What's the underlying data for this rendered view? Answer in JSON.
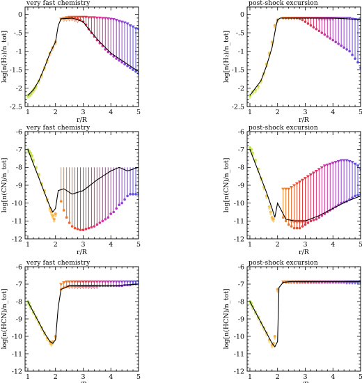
{
  "figure": {
    "background": "#ffffff",
    "model_color": "#000000",
    "gradient_colors": [
      "#b6e33a",
      "#f2c83a",
      "#f07a24",
      "#e0343e",
      "#d6329a",
      "#9c3ad8",
      "#4a55e0"
    ],
    "marker_lower": "down-triangle",
    "marker_upper": "up-triangle"
  },
  "chart_data": [
    {
      "type": "line",
      "title": "very fast chemistry",
      "xlabel": "r/R",
      "ylabel": "log[n(H₂)/n_tot]",
      "xlim": [
        0.9,
        5
      ],
      "ylim": [
        -2.5,
        0.2
      ],
      "xticks": [
        1,
        2,
        3,
        4,
        5
      ],
      "yticks": [
        -2.5,
        -2,
        -1.5,
        -1,
        -0.5,
        0
      ],
      "ytick_labels": [
        "-2.5",
        "-2",
        "-1.5",
        "-1",
        "-.5",
        "0"
      ],
      "model_curve": {
        "x": [
          1.0,
          1.2,
          1.4,
          1.6,
          1.8,
          2.0,
          2.1,
          2.2,
          2.6,
          3.0,
          3.2,
          3.6,
          4.0,
          4.4,
          4.8,
          5.0
        ],
        "y": [
          -2.2,
          -2.05,
          -1.8,
          -1.45,
          -1.05,
          -0.75,
          -0.3,
          -0.12,
          -0.1,
          -0.2,
          -0.4,
          -0.75,
          -1.05,
          -1.25,
          -1.45,
          -1.55
        ]
      },
      "bars": {
        "x": [
          2.2,
          2.3,
          2.4,
          2.5,
          2.6,
          2.7,
          2.8,
          2.9,
          3.0,
          3.1,
          3.2,
          3.3,
          3.4,
          3.5,
          3.6,
          3.7,
          3.8,
          3.9,
          4.0,
          4.1,
          4.2,
          4.3,
          4.4,
          4.5,
          4.6,
          4.7,
          4.8,
          4.9,
          5.0
        ],
        "low": [
          -0.12,
          -0.11,
          -0.1,
          -0.1,
          -0.1,
          -0.1,
          -0.12,
          -0.15,
          -0.2,
          -0.28,
          -0.4,
          -0.5,
          -0.6,
          -0.7,
          -0.78,
          -0.86,
          -0.95,
          -1.02,
          -1.08,
          -1.14,
          -1.2,
          -1.25,
          -1.3,
          -1.35,
          -1.4,
          -1.45,
          -1.5,
          -1.55,
          -1.6
        ],
        "high": [
          -0.12,
          -0.1,
          -0.08,
          -0.07,
          -0.07,
          -0.07,
          -0.07,
          -0.07,
          -0.07,
          -0.07,
          -0.08,
          -0.08,
          -0.08,
          -0.09,
          -0.09,
          -0.1,
          -0.1,
          -0.11,
          -0.12,
          -0.13,
          -0.15,
          -0.18,
          -0.2,
          -0.22,
          -0.25,
          -0.3,
          -0.33,
          -0.38,
          -0.4
        ]
      },
      "points": {
        "x": [
          1.0,
          1.05,
          1.1,
          1.15,
          1.2,
          1.25,
          1.3,
          1.4,
          1.5,
          1.6,
          1.7,
          1.8,
          1.9,
          2.0
        ],
        "y": [
          -2.2,
          -2.18,
          -2.15,
          -2.1,
          -2.05,
          -2.0,
          -1.95,
          -1.8,
          -1.65,
          -1.45,
          -1.25,
          -1.05,
          -0.9,
          -0.75
        ]
      },
      "upper_limit_markers": [
        2.3,
        2.4,
        2.5,
        2.6,
        2.7,
        2.8
      ]
    },
    {
      "type": "line",
      "title": "post-shock excursion",
      "xlabel": "r/R",
      "ylabel": "log[n(H₂)/n_tot]",
      "xlim": [
        0.9,
        5
      ],
      "ylim": [
        -2.5,
        0.2
      ],
      "xticks": [
        1,
        2,
        3,
        4,
        5
      ],
      "yticks": [
        -2.5,
        -2,
        -1.5,
        -1,
        -0.5,
        0
      ],
      "ytick_labels": [
        "-2.5",
        "-2",
        "-1.5",
        "-1",
        "-.5",
        "0"
      ],
      "model_curve": {
        "x": [
          1.0,
          1.2,
          1.4,
          1.6,
          1.8,
          1.95,
          2.0,
          2.1,
          2.5,
          3.0,
          3.5,
          4.0,
          4.5,
          5.0
        ],
        "y": [
          -2.2,
          -2.0,
          -1.8,
          -1.4,
          -0.9,
          -0.3,
          -0.15,
          -0.1,
          -0.1,
          -0.1,
          -0.1,
          -0.1,
          -0.12,
          -0.15
        ]
      },
      "bars": {
        "x": [
          2.2,
          2.3,
          2.4,
          2.5,
          2.6,
          2.7,
          2.8,
          2.9,
          3.0,
          3.1,
          3.2,
          3.3,
          3.4,
          3.5,
          3.6,
          3.7,
          3.8,
          3.9,
          4.0,
          4.1,
          4.2,
          4.3,
          4.4,
          4.5,
          4.6,
          4.7,
          4.8,
          4.9,
          5.0
        ],
        "low": [
          -0.1,
          -0.1,
          -0.1,
          -0.1,
          -0.1,
          -0.1,
          -0.12,
          -0.15,
          -0.2,
          -0.25,
          -0.3,
          -0.35,
          -0.4,
          -0.45,
          -0.5,
          -0.55,
          -0.6,
          -0.65,
          -0.7,
          -0.75,
          -0.8,
          -0.85,
          -0.9,
          -0.95,
          -1.0,
          -1.1,
          -1.2,
          -1.3,
          -1.45
        ],
        "high": [
          -0.1,
          -0.1,
          -0.1,
          -0.1,
          -0.1,
          -0.1,
          -0.1,
          -0.1,
          -0.1,
          -0.1,
          -0.1,
          -0.1,
          -0.1,
          -0.1,
          -0.1,
          -0.1,
          -0.1,
          -0.1,
          -0.1,
          -0.1,
          -0.1,
          -0.1,
          -0.1,
          -0.1,
          -0.1,
          -0.12,
          -0.13,
          -0.14,
          -0.15
        ]
      },
      "points": {
        "x": [
          1.0,
          1.1,
          1.2,
          1.3,
          1.4,
          1.5,
          1.6,
          1.7,
          1.8,
          1.9,
          2.0
        ],
        "y": [
          -2.2,
          -2.1,
          -2.05,
          -1.95,
          -1.8,
          -1.6,
          -1.35,
          -1.05,
          -0.75,
          -0.3,
          -0.15
        ]
      },
      "upper_limit_markers": [
        3.5,
        3.6,
        3.7,
        3.8,
        3.9,
        4.0
      ]
    },
    {
      "type": "line",
      "title": "very fast chemistry",
      "xlabel": "r/R",
      "ylabel": "log[n(CN)/n_tot]",
      "xlim": [
        0.9,
        5
      ],
      "ylim": [
        -12,
        -6
      ],
      "xticks": [
        1,
        2,
        3,
        4,
        5
      ],
      "yticks": [
        -12,
        -11,
        -10,
        -9,
        -8,
        -7,
        -6
      ],
      "ytick_labels": [
        "-12",
        "-11",
        "-10",
        "-9",
        "-8",
        "-7",
        "-6"
      ],
      "model_curve": {
        "x": [
          1.0,
          1.2,
          1.4,
          1.6,
          1.8,
          1.9,
          2.0,
          2.1,
          2.3,
          2.6,
          3.0,
          3.5,
          4.0,
          4.3,
          4.6,
          5.0
        ],
        "y": [
          -7.0,
          -7.8,
          -8.6,
          -9.4,
          -10.2,
          -10.5,
          -10.3,
          -9.3,
          -9.2,
          -9.5,
          -9.3,
          -8.7,
          -8.2,
          -8.0,
          -8.2,
          -8.0
        ]
      },
      "bars": {
        "x": [
          2.2,
          2.3,
          2.4,
          2.5,
          2.6,
          2.7,
          2.8,
          2.9,
          3.0,
          3.1,
          3.2,
          3.3,
          3.4,
          3.5,
          3.6,
          3.7,
          3.8,
          3.9,
          4.0,
          4.1,
          4.2,
          4.3,
          4.4,
          4.5,
          4.6,
          4.7,
          4.8,
          4.9,
          5.0
        ],
        "low": [
          -9.9,
          -10.4,
          -10.8,
          -11.1,
          -11.3,
          -11.4,
          -11.45,
          -11.5,
          -11.5,
          -11.45,
          -11.4,
          -11.35,
          -11.3,
          -11.2,
          -11.1,
          -11.0,
          -10.9,
          -10.8,
          -10.6,
          -10.5,
          -10.3,
          -10.1,
          -10.0,
          -9.8,
          -9.6,
          -9.5,
          -9.5,
          -9.5,
          -9.5
        ]
      },
      "points": {
        "x": [
          1.0,
          1.05,
          1.1,
          1.15,
          1.2,
          1.3,
          1.4,
          1.5,
          1.6,
          1.7,
          1.8,
          1.85,
          1.9,
          1.95,
          2.0
        ],
        "y": [
          -7.0,
          -7.1,
          -7.2,
          -7.35,
          -7.6,
          -8.0,
          -8.4,
          -8.9,
          -9.3,
          -9.8,
          -10.3,
          -10.5,
          -10.7,
          -10.9,
          -10.6
        ]
      },
      "upper_limit_markers": []
    },
    {
      "type": "line",
      "title": "post-shock excursion",
      "xlabel": "r/R",
      "ylabel": "log[n(CN)/n_tot]",
      "xlim": [
        0.9,
        5
      ],
      "ylim": [
        -12,
        -6
      ],
      "xticks": [
        1,
        2,
        3,
        4,
        5
      ],
      "yticks": [
        -12,
        -11,
        -10,
        -9,
        -8,
        -7,
        -6
      ],
      "ytick_labels": [
        "-12",
        "-11",
        "-10",
        "-9",
        "-8",
        "-7",
        "-6"
      ],
      "model_curve": {
        "x": [
          1.0,
          1.2,
          1.4,
          1.6,
          1.8,
          1.9,
          2.0,
          2.1,
          2.3,
          2.6,
          3.0,
          3.5,
          4.0,
          4.5,
          5.0
        ],
        "y": [
          -7.0,
          -7.8,
          -8.6,
          -9.4,
          -10.3,
          -10.8,
          -10.0,
          -10.3,
          -10.9,
          -11.0,
          -11.0,
          -10.7,
          -10.3,
          -9.9,
          -9.6
        ]
      },
      "bars": {
        "x": [
          2.2,
          2.3,
          2.4,
          2.5,
          2.6,
          2.7,
          2.8,
          2.9,
          3.0,
          3.1,
          3.2,
          3.3,
          3.4,
          3.5,
          3.6,
          3.7,
          3.8,
          3.9,
          4.0,
          4.1,
          4.2,
          4.3,
          4.4,
          4.5,
          4.6,
          4.7,
          4.8,
          4.9,
          5.0
        ],
        "high": [
          -9.2,
          -9.2,
          -9.2,
          -9.1,
          -9.0,
          -8.9,
          -8.8,
          -8.7,
          -8.6,
          -8.5,
          -8.4,
          -8.3,
          -8.2,
          -8.1,
          -8.0,
          -7.9,
          -7.85,
          -7.8,
          -7.75,
          -7.7,
          -7.65,
          -7.6,
          -7.6,
          -7.6,
          -7.65,
          -7.7,
          -7.8,
          -7.9,
          -8.1
        ],
        "low": [
          -10.8,
          -11.0,
          -11.2,
          -11.3,
          -11.4,
          -11.4,
          -11.4,
          -11.3,
          -11.2,
          -11.1,
          -11.0,
          -10.95,
          -10.9,
          -10.8,
          -10.7,
          -10.6,
          -10.5,
          -10.4,
          -10.3,
          -10.2,
          -10.1,
          -10.0,
          -9.95,
          -9.9,
          -9.8,
          -9.7,
          -9.6,
          -9.55,
          -9.5
        ]
      },
      "points": {
        "x": [
          1.0,
          1.05,
          1.1,
          1.2,
          1.3,
          1.4,
          1.5,
          1.6,
          1.7,
          1.75,
          1.8,
          1.85
        ],
        "y": [
          -6.9,
          -7.0,
          -7.2,
          -7.6,
          -8.1,
          -8.6,
          -9.1,
          -9.6,
          -10.2,
          -10.5,
          -10.8,
          -10.9
        ]
      },
      "upper_limit_markers": [
        2.5,
        2.6,
        2.7,
        2.8,
        2.9,
        3.0
      ]
    },
    {
      "type": "line",
      "title": "very fast chemistry",
      "xlabel": "r/R",
      "ylabel": "log[n(HCN)/n_tot]",
      "xlim": [
        0.9,
        5
      ],
      "ylim": [
        -12,
        -6
      ],
      "xticks": [
        1,
        2,
        3,
        4,
        5
      ],
      "yticks": [
        -12,
        -11,
        -10,
        -9,
        -8,
        -7,
        -6
      ],
      "ytick_labels": [
        "-12",
        "-11",
        "-10",
        "-9",
        "-8",
        "-7",
        "-6"
      ],
      "model_curve": {
        "x": [
          1.0,
          1.2,
          1.4,
          1.6,
          1.8,
          1.9,
          2.0,
          2.1,
          2.2,
          2.5,
          3.0,
          3.5,
          4.0,
          4.5,
          5.0
        ],
        "y": [
          -8.0,
          -8.6,
          -9.2,
          -9.8,
          -10.3,
          -10.4,
          -10.2,
          -8.3,
          -7.3,
          -7.1,
          -7.1,
          -7.1,
          -7.1,
          -7.05,
          -7.0
        ]
      },
      "bars": {
        "x": [
          2.2,
          2.3,
          2.4,
          2.5,
          2.6,
          2.7,
          2.8,
          2.9,
          3.0,
          3.1,
          3.2,
          3.3,
          3.4,
          3.5,
          3.6,
          3.7,
          3.8,
          3.9,
          4.0,
          4.1,
          4.2,
          4.3,
          4.4,
          4.5,
          4.6,
          4.7,
          4.8,
          4.9,
          5.0
        ],
        "low": [
          -7.3,
          -7.2,
          -7.15,
          -7.1,
          -7.1,
          -7.1,
          -7.1,
          -7.1,
          -7.1,
          -7.1,
          -7.1,
          -7.1,
          -7.1,
          -7.1,
          -7.1,
          -7.1,
          -7.1,
          -7.1,
          -7.1,
          -7.1,
          -7.1,
          -7.1,
          -7.1,
          -7.05,
          -7.05,
          -7.05,
          -7.0,
          -7.0,
          -7.0
        ],
        "high": [
          -7.0,
          -6.9,
          -6.85,
          -6.85,
          -6.85,
          -6.85,
          -6.85,
          -6.85,
          -6.85,
          -6.85,
          -6.85,
          -6.85,
          -6.85,
          -6.85,
          -6.85,
          -6.85,
          -6.85,
          -6.85,
          -6.85,
          -6.85,
          -6.85,
          -6.85,
          -6.85,
          -6.85,
          -6.85,
          -6.85,
          -6.85,
          -6.85,
          -6.85
        ]
      },
      "points": {
        "x": [
          1.0,
          1.05,
          1.1,
          1.2,
          1.3,
          1.4,
          1.5,
          1.6,
          1.7,
          1.8,
          1.85,
          1.9,
          2.0
        ],
        "y": [
          -8.0,
          -8.1,
          -8.3,
          -8.6,
          -8.9,
          -9.2,
          -9.5,
          -9.8,
          -10.1,
          -10.3,
          -10.4,
          -10.3,
          -10.0
        ]
      },
      "upper_limit_markers": [
        2.5,
        2.6,
        2.7,
        2.8,
        2.9,
        3.0,
        3.1,
        3.2,
        3.3,
        3.4,
        3.5
      ]
    },
    {
      "type": "line",
      "title": "post-shock excursion",
      "xlabel": "r/R",
      "ylabel": "log[n(HCN)/n_tot]",
      "xlim": [
        0.9,
        5
      ],
      "ylim": [
        -12,
        -6
      ],
      "xticks": [
        1,
        2,
        3,
        4,
        5
      ],
      "yticks": [
        -12,
        -11,
        -10,
        -9,
        -8,
        -7,
        -6
      ],
      "ytick_labels": [
        "-12",
        "-11",
        "-10",
        "-9",
        "-8",
        "-7",
        "-6"
      ],
      "model_curve": {
        "x": [
          1.0,
          1.2,
          1.4,
          1.6,
          1.8,
          1.9,
          2.0,
          2.05,
          2.2,
          2.5,
          3.0,
          3.5,
          4.0,
          4.5,
          5.0
        ],
        "y": [
          -8.0,
          -8.6,
          -9.2,
          -9.8,
          -10.4,
          -10.6,
          -10.3,
          -7.2,
          -6.9,
          -6.85,
          -6.85,
          -6.85,
          -6.85,
          -6.85,
          -6.85
        ]
      },
      "bars": {
        "x": [
          2.2,
          2.3,
          2.4,
          2.5,
          2.6,
          2.7,
          2.8,
          2.9,
          3.0,
          3.1,
          3.2,
          3.3,
          3.4,
          3.5,
          3.6,
          3.7,
          3.8,
          3.9,
          4.0,
          4.1,
          4.2,
          4.3,
          4.4,
          4.5,
          4.6,
          4.7,
          4.8,
          4.9,
          5.0
        ],
        "low": [
          -6.9,
          -6.9,
          -6.9,
          -6.9,
          -6.9,
          -6.9,
          -6.9,
          -6.9,
          -6.9,
          -6.9,
          -6.9,
          -6.9,
          -6.9,
          -6.9,
          -6.9,
          -6.9,
          -6.9,
          -6.9,
          -6.9,
          -6.9,
          -6.9,
          -6.9,
          -6.9,
          -6.9,
          -6.9,
          -6.9,
          -6.9,
          -6.9,
          -6.9
        ],
        "high": [
          -6.85,
          -6.85,
          -6.85,
          -6.85,
          -6.85,
          -6.85,
          -6.85,
          -6.85,
          -6.85,
          -6.85,
          -6.85,
          -6.85,
          -6.85,
          -6.85,
          -6.85,
          -6.85,
          -6.85,
          -6.85,
          -6.85,
          -6.85,
          -6.85,
          -6.85,
          -6.85,
          -6.85,
          -6.85,
          -6.85,
          -6.85,
          -6.85,
          -6.85
        ]
      },
      "points": {
        "x": [
          1.0,
          1.05,
          1.1,
          1.2,
          1.3,
          1.4,
          1.5,
          1.6,
          1.7,
          1.8,
          1.85,
          1.9,
          2.0
        ],
        "y": [
          -8.0,
          -8.1,
          -8.3,
          -8.6,
          -8.9,
          -9.2,
          -9.5,
          -9.8,
          -10.2,
          -10.5,
          -10.4,
          -10.0,
          -7.3
        ]
      },
      "upper_limit_markers": [
        4.5,
        4.6,
        4.7,
        4.8
      ]
    }
  ]
}
